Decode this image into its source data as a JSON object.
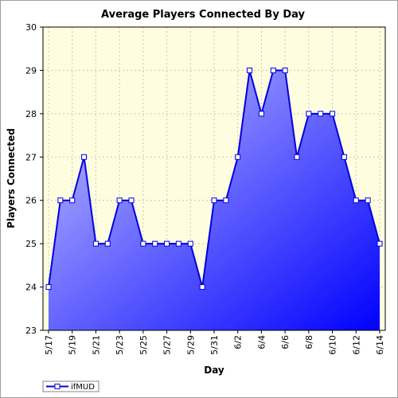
{
  "chart_data": {
    "type": "area",
    "title": "Average Players Connected By Day",
    "xlabel": "Day",
    "ylabel": "Players Connected",
    "ylim": [
      23,
      30
    ],
    "y_ticks": [
      23,
      24,
      25,
      26,
      27,
      28,
      29,
      30
    ],
    "x_tick_labels": [
      "5/17",
      "5/19",
      "5/21",
      "5/23",
      "5/25",
      "5/27",
      "5/29",
      "5/31",
      "6/2",
      "6/4",
      "6/6",
      "6/8",
      "6/10",
      "6/12",
      "6/14"
    ],
    "x": [
      "5/17",
      "5/18",
      "5/19",
      "5/20",
      "5/21",
      "5/22",
      "5/23",
      "5/24",
      "5/25",
      "5/26",
      "5/27",
      "5/28",
      "5/29",
      "5/30",
      "5/31",
      "6/1",
      "6/2",
      "6/3",
      "6/4",
      "6/5",
      "6/6",
      "6/7",
      "6/8",
      "6/9",
      "6/10",
      "6/11",
      "6/12",
      "6/13",
      "6/14"
    ],
    "series": [
      {
        "name": "ifMUD",
        "values": [
          24,
          26,
          26,
          27,
          25,
          25,
          26,
          26,
          25,
          25,
          25,
          25,
          25,
          24,
          26,
          26,
          27,
          29,
          28,
          29,
          29,
          27,
          28,
          28,
          28,
          27,
          26,
          26,
          25
        ]
      }
    ],
    "grid": true,
    "legend_position": "bottom-left",
    "colors": {
      "plot_background": "#fffde0",
      "grid": "#c8c8a8",
      "line": "#0000e0",
      "fill_light": "#c8c8ff",
      "fill_dark": "#0000ff",
      "marker_fill": "#ffffff"
    }
  }
}
